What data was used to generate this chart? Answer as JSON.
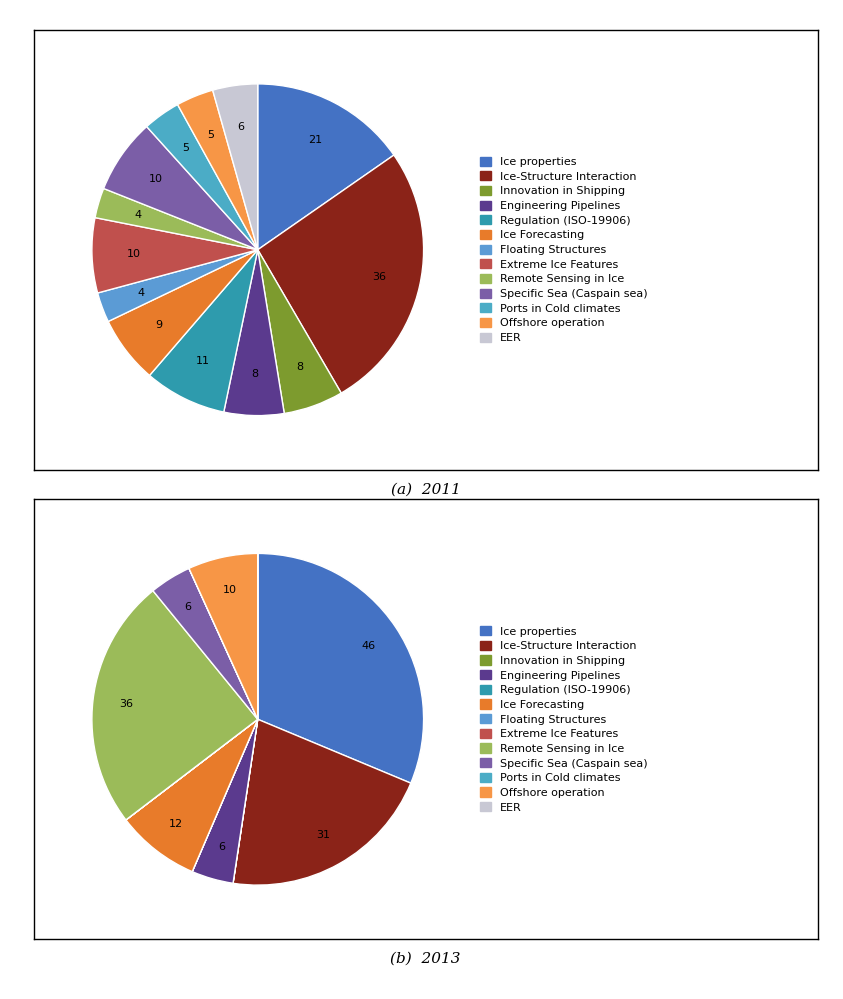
{
  "categories": [
    "Ice properties",
    "Ice-Structure Interaction",
    "Innovation in Shipping",
    "Engineering Pipelines",
    "Regulation (ISO-19906)",
    "Ice Forecasting",
    "Floating Structures",
    "Extreme Ice Features",
    "Remote Sensing in Ice",
    "Specific Sea (Caspain sea)",
    "Ports in Cold climates",
    "Offshore operation",
    "EER"
  ],
  "pie_colors": [
    "#4472C4",
    "#8B2318",
    "#7D9B2E",
    "#5B3A8E",
    "#2E9BAD",
    "#E87B2A",
    "#5B9BD5",
    "#C0504D",
    "#9BBB59",
    "#7B5EA7",
    "#4BACC6",
    "#F79646",
    "#C8C8D4"
  ],
  "values_2011": [
    21,
    36,
    8,
    8,
    11,
    9,
    4,
    10,
    4,
    10,
    5,
    5,
    6
  ],
  "values_2013": [
    46,
    31,
    0,
    6,
    0,
    12,
    0,
    0,
    36,
    6,
    0,
    10,
    0
  ],
  "title_a": "(a)  2011",
  "title_b": "(b)  2013",
  "label_fontsize": 8,
  "legend_fontsize": 8.0,
  "title_fontsize": 11
}
